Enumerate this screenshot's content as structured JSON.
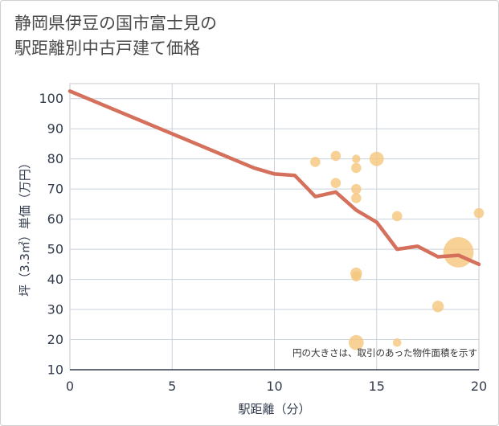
{
  "chart_data": {
    "type": "scatter",
    "title_line1": "静岡県伊豆の国市富士見の",
    "title_line2": "駅距離別中古戸建て価格",
    "xlabel": "駅距離（分）",
    "ylabel": "坪（3.3㎡）単価（万円）",
    "xlim": [
      0,
      20
    ],
    "ylim": [
      10,
      105
    ],
    "x_ticks": [
      0,
      5,
      10,
      15,
      20
    ],
    "y_ticks": [
      10,
      20,
      30,
      40,
      50,
      60,
      70,
      80,
      90,
      100
    ],
    "grid": true,
    "note": "円の大きさは、取引のあった物件面積を示す",
    "series": [
      {
        "name": "average-line",
        "kind": "line",
        "color": "#d4705c",
        "x": [
          0,
          9,
          10,
          11,
          12,
          13,
          14,
          15,
          16,
          17,
          18,
          19,
          20
        ],
        "y": [
          102.5,
          77,
          75,
          74.5,
          67.5,
          69,
          63,
          59,
          50,
          51,
          47.5,
          48,
          45
        ]
      },
      {
        "name": "transactions",
        "kind": "bubble",
        "color": "#f5c77e",
        "points": [
          {
            "x": 12,
            "y": 79,
            "size": 1
          },
          {
            "x": 13,
            "y": 81,
            "size": 1
          },
          {
            "x": 13,
            "y": 72,
            "size": 1
          },
          {
            "x": 14,
            "y": 80,
            "size": 0.7
          },
          {
            "x": 14,
            "y": 77,
            "size": 1
          },
          {
            "x": 14,
            "y": 70,
            "size": 1
          },
          {
            "x": 14,
            "y": 67,
            "size": 1
          },
          {
            "x": 14,
            "y": 42,
            "size": 1.3
          },
          {
            "x": 14,
            "y": 41,
            "size": 1
          },
          {
            "x": 14,
            "y": 19,
            "size": 2.2
          },
          {
            "x": 15,
            "y": 80,
            "size": 2
          },
          {
            "x": 16,
            "y": 61,
            "size": 1
          },
          {
            "x": 16,
            "y": 19,
            "size": 0.7
          },
          {
            "x": 18,
            "y": 31,
            "size": 1.3
          },
          {
            "x": 19,
            "y": 49,
            "size": 9
          },
          {
            "x": 20,
            "y": 62,
            "size": 1
          }
        ]
      }
    ]
  }
}
